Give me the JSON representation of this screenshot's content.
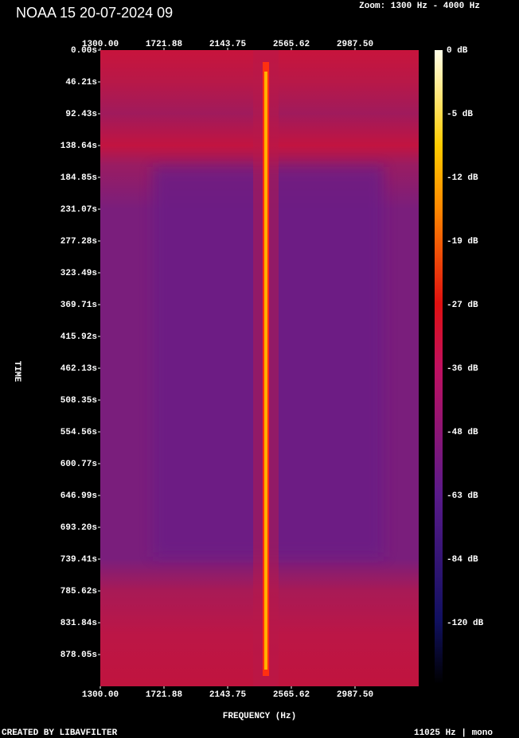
{
  "chart_data": {
    "type": "spectrogram",
    "title": "NOAA 15 20-07-2024 09",
    "subtitle": "Zoom: 1300 Hz - 4000 Hz",
    "xlabel": "FREQUENCY (Hz)",
    "ylabel": "TIME",
    "xlim": [
      1300,
      3409.375
    ],
    "xticks": [
      {
        "value": 1300,
        "label": "1300.00"
      },
      {
        "value": 1721.88,
        "label": "1721.88"
      },
      {
        "value": 2143.75,
        "label": "2143.75"
      },
      {
        "value": 2565.62,
        "label": "2565.62"
      },
      {
        "value": 2987.5,
        "label": "2987.50"
      }
    ],
    "ylim": [
      0,
      924.2
    ],
    "yticks": [
      {
        "value": 0,
        "label": "0.00s"
      },
      {
        "value": 46.21,
        "label": "46.21s"
      },
      {
        "value": 92.43,
        "label": "92.43s"
      },
      {
        "value": 138.64,
        "label": "138.64s"
      },
      {
        "value": 184.85,
        "label": "184.85s"
      },
      {
        "value": 231.07,
        "label": "231.07s"
      },
      {
        "value": 277.28,
        "label": "277.28s"
      },
      {
        "value": 323.49,
        "label": "323.49s"
      },
      {
        "value": 369.71,
        "label": "369.71s"
      },
      {
        "value": 415.92,
        "label": "415.92s"
      },
      {
        "value": 462.13,
        "label": "462.13s"
      },
      {
        "value": 508.35,
        "label": "508.35s"
      },
      {
        "value": 554.56,
        "label": "554.56s"
      },
      {
        "value": 600.77,
        "label": "600.77s"
      },
      {
        "value": 646.99,
        "label": "646.99s"
      },
      {
        "value": 693.2,
        "label": "693.20s"
      },
      {
        "value": 739.41,
        "label": "739.41s"
      },
      {
        "value": 785.62,
        "label": "785.62s"
      },
      {
        "value": 831.84,
        "label": "831.84s"
      },
      {
        "value": 878.05,
        "label": "878.05s"
      }
    ],
    "colorbar_labels": [
      "0 dB",
      "-5 dB",
      "-12 dB",
      "-19 dB",
      "-27 dB",
      "-36 dB",
      "-48 dB",
      "-63 dB",
      "-84 dB",
      "-120 dB"
    ],
    "footer_left": "CREATED BY LIBAVFILTER",
    "footer_right": "11025 Hz | mono"
  }
}
